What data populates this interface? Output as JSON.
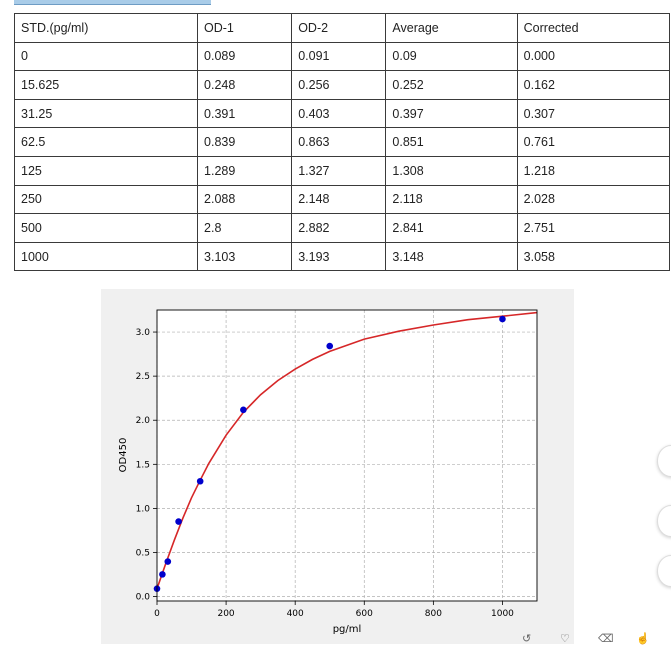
{
  "table": {
    "headers": [
      "STD.(pg/ml)",
      "OD-1",
      "OD-2",
      "Average",
      "Corrected"
    ],
    "rows": [
      [
        "0",
        "0.089",
        "0.091",
        "0.09",
        "0.000"
      ],
      [
        "15.625",
        "0.248",
        "0.256",
        "0.252",
        "0.162"
      ],
      [
        "31.25",
        "0.391",
        "0.403",
        "0.397",
        "0.307"
      ],
      [
        "62.5",
        "0.839",
        "0.863",
        "0.851",
        "0.761"
      ],
      [
        "125",
        "1.289",
        "1.327",
        "1.308",
        "1.218"
      ],
      [
        "250",
        "2.088",
        "2.148",
        "2.118",
        "2.028"
      ],
      [
        "500",
        "2.8",
        "2.882",
        "2.841",
        "2.751"
      ],
      [
        "1000",
        "3.103",
        "3.193",
        "3.148",
        "3.058"
      ]
    ]
  },
  "chart_data": {
    "type": "scatter",
    "title": "",
    "xlabel": "pg/ml",
    "ylabel": "OD450",
    "xlim": [
      0,
      1100
    ],
    "ylim": [
      -0.05,
      3.25
    ],
    "xticks": [
      0,
      200,
      400,
      600,
      800,
      1000
    ],
    "yticks": [
      0.0,
      0.5,
      1.0,
      1.5,
      2.0,
      2.5,
      3.0
    ],
    "grid": true,
    "series": [
      {
        "kind": "points",
        "x": [
          0,
          15.625,
          31.25,
          62.5,
          125,
          250,
          500,
          1000
        ],
        "y": [
          0.09,
          0.252,
          0.397,
          0.851,
          1.308,
          2.118,
          2.841,
          3.148
        ],
        "color": "#0000cc"
      },
      {
        "kind": "fit-curve",
        "x": [
          0,
          25,
          50,
          75,
          100,
          125,
          150,
          200,
          250,
          300,
          350,
          400,
          450,
          500,
          600,
          700,
          800,
          900,
          1000,
          1100
        ],
        "y": [
          0.09,
          0.37,
          0.64,
          0.89,
          1.12,
          1.32,
          1.51,
          1.83,
          2.09,
          2.29,
          2.45,
          2.58,
          2.69,
          2.78,
          2.92,
          3.01,
          3.08,
          3.14,
          3.18,
          3.22
        ],
        "color": "#d62728"
      }
    ]
  }
}
